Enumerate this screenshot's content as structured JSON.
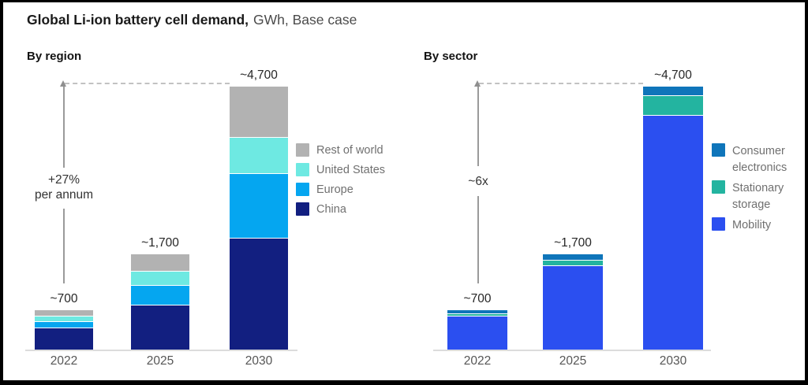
{
  "title": {
    "main": "Global Li-ion battery cell demand,",
    "suffix": "GWh, Base case"
  },
  "chart_data": [
    {
      "type": "bar",
      "stacked": true,
      "panel_title": "By region",
      "unit": "GWh",
      "categories": [
        "2022",
        "2025",
        "2030"
      ],
      "totals": [
        700,
        1700,
        4700
      ],
      "total_labels": [
        "~700",
        "~1,700",
        "~4,700"
      ],
      "growth_label": [
        "+27%",
        "per annum"
      ],
      "ylim": [
        0,
        4700
      ],
      "grid": false,
      "legend_position": "right",
      "series": [
        {
          "name": "China",
          "color": "#121F80",
          "values": [
            400,
            800,
            2000
          ]
        },
        {
          "name": "Europe",
          "color": "#05A6F0",
          "values": [
            100,
            350,
            1150
          ]
        },
        {
          "name": "United States",
          "color": "#6EE9E2",
          "values": [
            100,
            250,
            650
          ]
        },
        {
          "name": "Rest of world",
          "color": "#B2B2B2",
          "values": [
            100,
            300,
            900
          ]
        }
      ]
    },
    {
      "type": "bar",
      "stacked": true,
      "panel_title": "By sector",
      "unit": "GWh",
      "categories": [
        "2022",
        "2025",
        "2030"
      ],
      "totals": [
        700,
        1700,
        4700
      ],
      "total_labels": [
        "~700",
        "~1,700",
        "~4,700"
      ],
      "growth_label": [
        "~6x"
      ],
      "ylim": [
        0,
        4700
      ],
      "grid": false,
      "legend_position": "right",
      "series": [
        {
          "name": "Mobility",
          "color": "#2B4FF0",
          "values": [
            600,
            1500,
            4200
          ]
        },
        {
          "name": "Stationary storage",
          "color": "#23B4A0",
          "values": [
            50,
            100,
            350
          ]
        },
        {
          "name": "Consumer electronics",
          "color": "#0F75BA",
          "values": [
            50,
            100,
            150
          ]
        }
      ]
    }
  ]
}
